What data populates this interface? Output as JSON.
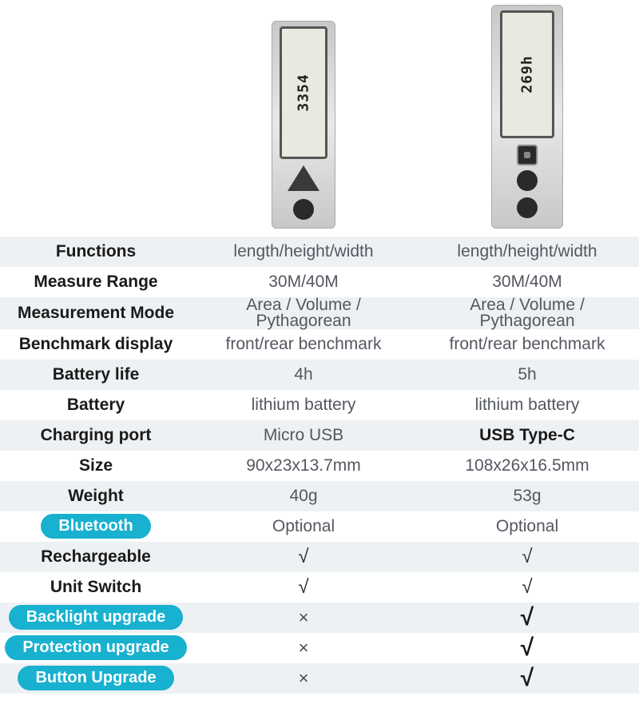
{
  "colors": {
    "pill_bg": "#18b1cf",
    "pill_text": "#ffffff",
    "row_even_bg": "#eef1f3",
    "row_odd_bg": "#ffffff",
    "label_text": "#1a1a1a",
    "value_text": "#545760"
  },
  "devices": {
    "a": {
      "screen_readout": "3354"
    },
    "b": {
      "screen_readout": "269h"
    }
  },
  "rows": [
    {
      "label": "Functions",
      "a": "length/height/width",
      "b": "length/height/width",
      "pill": false
    },
    {
      "label": "Measure Range",
      "a": "30M/40M",
      "b": "30M/40M",
      "pill": false
    },
    {
      "label": "Measurement Mode",
      "a": "Area / Volume / Pythagorean",
      "b": "Area / Volume / Pythagorean",
      "pill": false,
      "twoline": true
    },
    {
      "label": "Benchmark display",
      "a": "front/rear benchmark",
      "b": "front/rear benchmark",
      "pill": false
    },
    {
      "label": "Battery life",
      "a": "4h",
      "b": "5h",
      "pill": false
    },
    {
      "label": "Battery",
      "a": "lithium battery",
      "b": "lithium battery",
      "pill": false
    },
    {
      "label": "Charging port",
      "a": "Micro USB",
      "b": "USB Type-C",
      "b_bold": true,
      "pill": false
    },
    {
      "label": "Size",
      "a": "90x23x13.7mm",
      "b": "108x26x16.5mm",
      "pill": false
    },
    {
      "label": "Weight",
      "a": "40g",
      "b": "53g",
      "pill": false
    },
    {
      "label": "Bluetooth",
      "a": "Optional",
      "b": "Optional",
      "pill": true
    },
    {
      "label": "Rechargeable",
      "a": "√",
      "b": "√",
      "pill": false,
      "a_mark": "check",
      "b_mark": "check"
    },
    {
      "label": "Unit Switch",
      "a": "√",
      "b": "√",
      "pill": false,
      "a_mark": "check",
      "b_mark": "check"
    },
    {
      "label": "Backlight upgrade",
      "a": "×",
      "b": "√",
      "pill": true,
      "a_mark": "cross",
      "b_mark": "check-big"
    },
    {
      "label": "Protection upgrade",
      "a": "×",
      "b": "√",
      "pill": true,
      "a_mark": "cross",
      "b_mark": "check-big"
    },
    {
      "label": "Button Upgrade",
      "a": "×",
      "b": "√",
      "pill": true,
      "a_mark": "cross",
      "b_mark": "check-big"
    }
  ]
}
